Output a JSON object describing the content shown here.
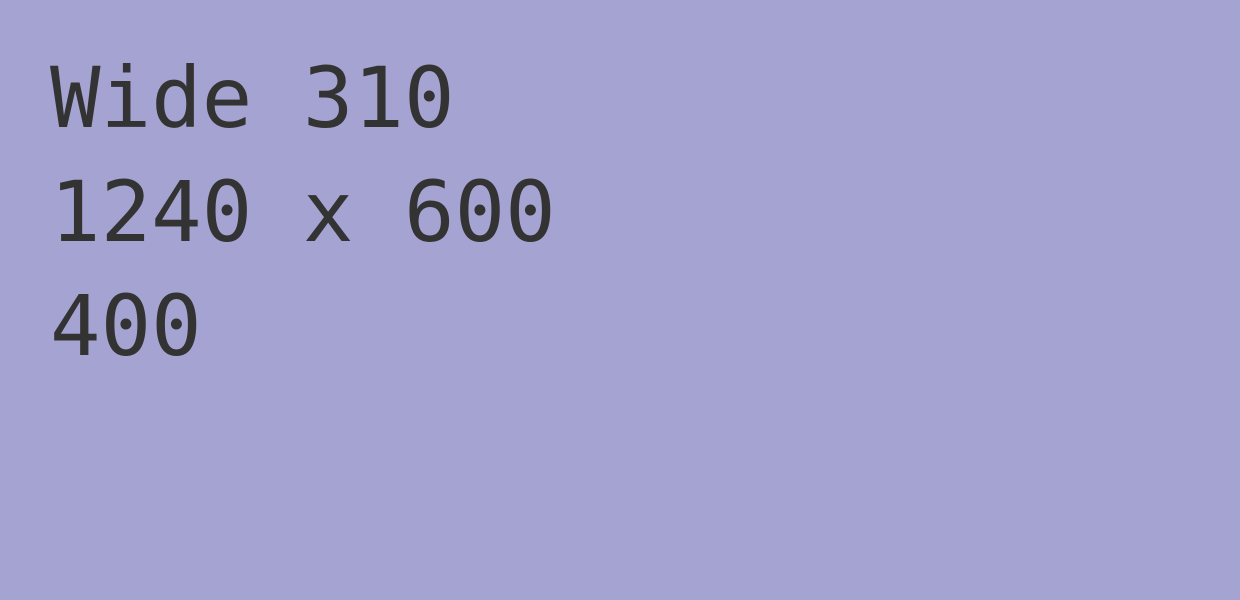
{
  "colors": {
    "background": "#a5a3d1",
    "text": "#333333"
  },
  "lines": [
    "Wide 310",
    "1240 x 600",
    "400"
  ]
}
